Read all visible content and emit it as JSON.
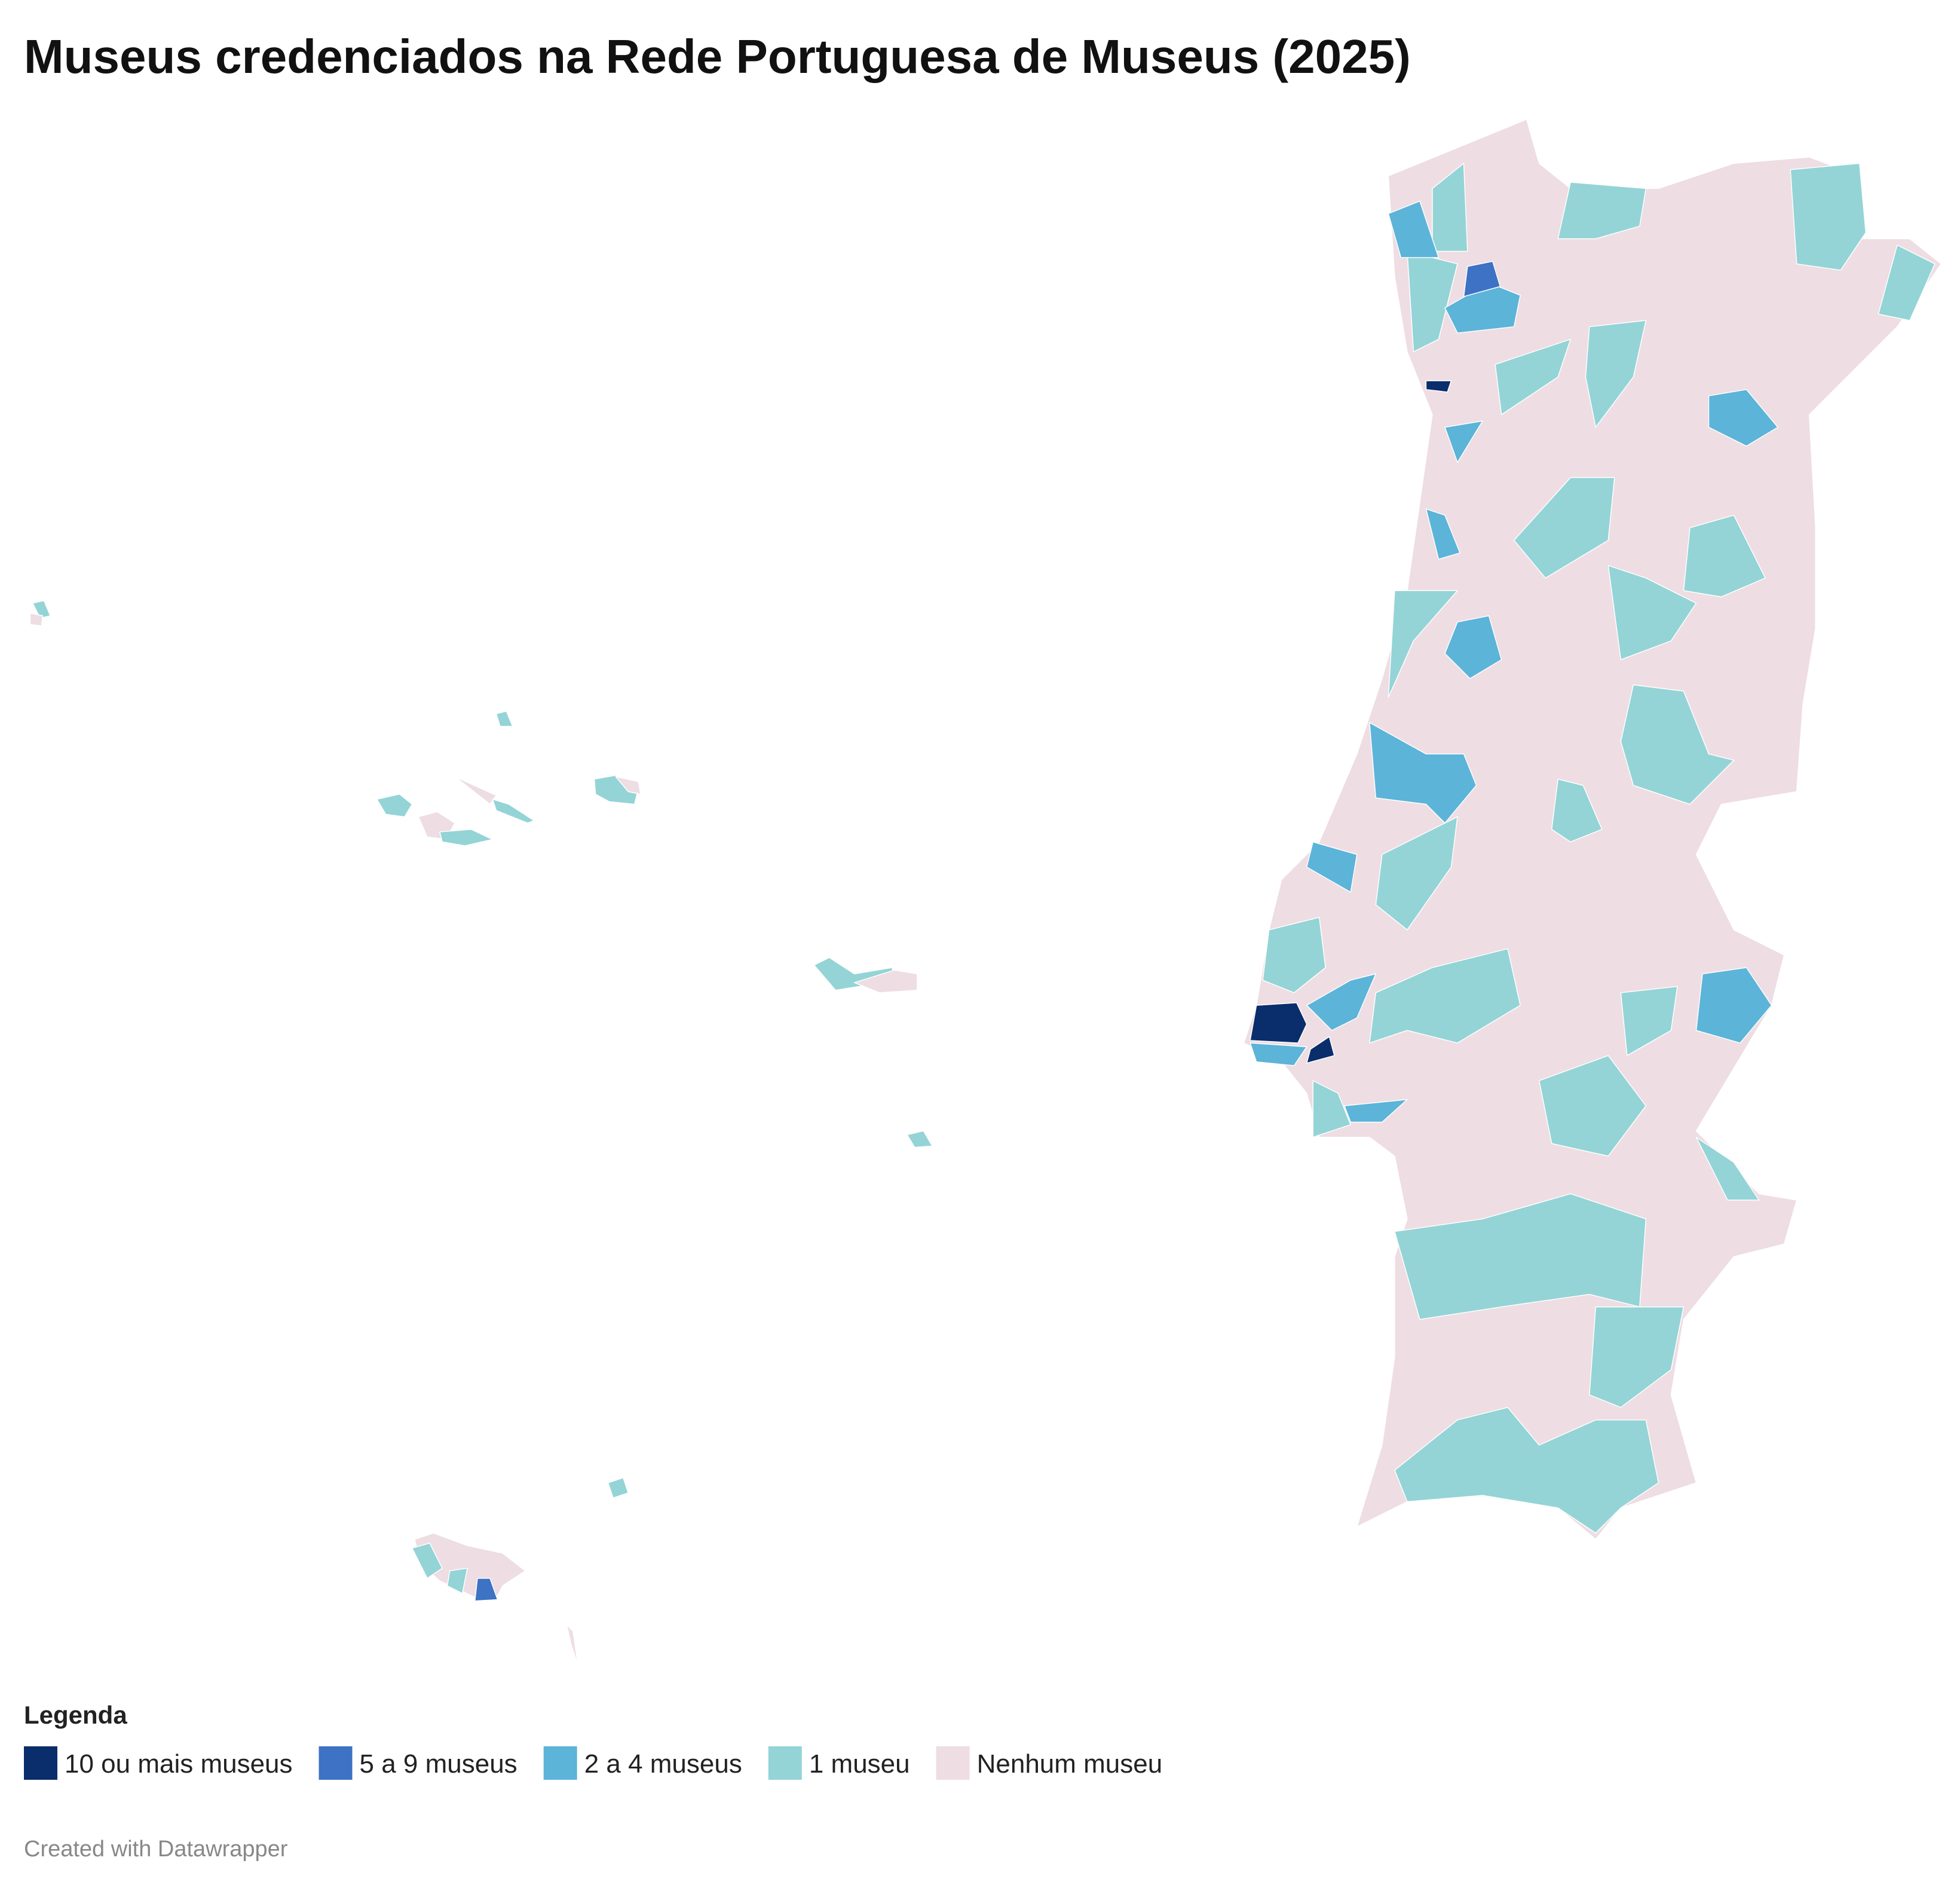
{
  "title": "Museus credenciados na Rede Portuguesa de Museus (2025)",
  "legend": {
    "title": "Legenda",
    "items": [
      {
        "label": "10 ou mais museus",
        "color": "#0a2d6b"
      },
      {
        "label": "5 a 9 museus",
        "color": "#3d72c4"
      },
      {
        "label": "2 a 4 museus",
        "color": "#5cb4d8"
      },
      {
        "label": "1 museu",
        "color": "#94d4d6"
      },
      {
        "label": "Nenhum museu",
        "color": "#eedde3"
      }
    ]
  },
  "credit": "Created with Datawrapper"
}
